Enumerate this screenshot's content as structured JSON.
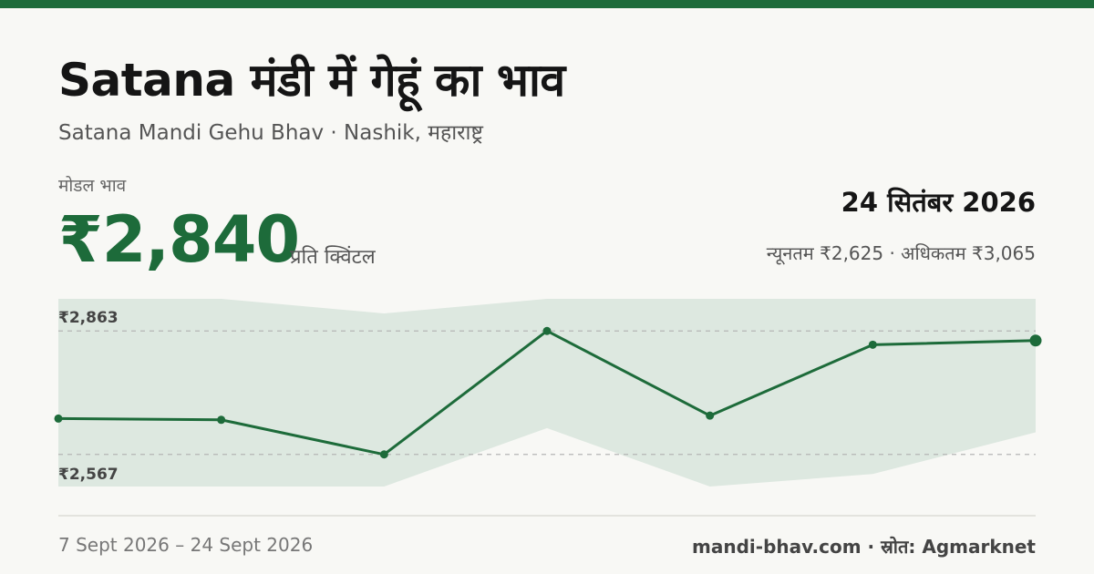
{
  "header": {
    "title": "Satana मंडी में गेहूं का भाव",
    "subtitle": "Satana Mandi Gehu Bhav · Nashik, महाराष्ट्र"
  },
  "price_card": {
    "label": "मोडल भाव",
    "value": "₹2,840",
    "unit": "प्रति क्विंटल",
    "date": "24 सितंबर 2026",
    "range_text": "न्यूनतम ₹2,625 · अधिकतम ₹3,065"
  },
  "chart_data": {
    "type": "line",
    "title": "",
    "xlabel": "",
    "ylabel": "",
    "reference_lines": [
      {
        "label": "₹2,863",
        "value": 2863
      },
      {
        "label": "₹2,567",
        "value": 2567
      }
    ],
    "ylim": [
      2490,
      2940
    ],
    "series": [
      {
        "name": "",
        "type": "line",
        "values": [
          2653,
          2650,
          2567,
          2863,
          2660,
          2830,
          2840
        ]
      },
      {
        "name": "",
        "type": "band-max",
        "values": [
          2940,
          2940,
          2905,
          2940,
          2940,
          2940,
          2940
        ]
      },
      {
        "name": "",
        "type": "band-min",
        "values": [
          2490,
          2490,
          2490,
          2630,
          2490,
          2520,
          2620
        ]
      }
    ],
    "band_upper_dips": [],
    "colors": {
      "line": "#1d6b3a",
      "band": "#dde8e0",
      "grid": "#b5b5b5"
    }
  },
  "footer": {
    "period": "7 Sept 2026 – 24 Sept 2026",
    "source": "mandi-bhav.com · स्रोत: Agmarknet"
  }
}
